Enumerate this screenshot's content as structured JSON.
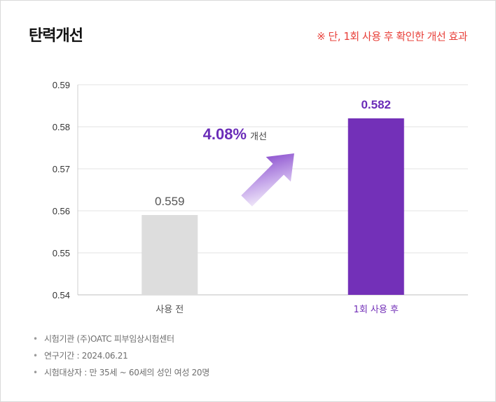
{
  "title": "탄력개선",
  "note": "※ 단, 1회 사용 후 확인한 개선 효과",
  "chart_data": {
    "type": "bar",
    "categories": [
      "사용 전",
      "1회 사용 후"
    ],
    "values": [
      0.559,
      0.582
    ],
    "data_labels": [
      "0.559",
      "0.582"
    ],
    "colors": [
      "#dddddd",
      "#7330b8"
    ],
    "category_label_colors": [
      "#555555",
      "#7330b8"
    ],
    "ylim": [
      0.54,
      0.59
    ],
    "yticks": [
      "0.54",
      "0.55",
      "0.56",
      "0.57",
      "0.58",
      "0.59"
    ],
    "grid": true,
    "annotation": {
      "value": "4.08%",
      "text": "개선",
      "color": "#6a2cb8"
    }
  },
  "footnotes": [
    "시험기관 (주)OATC 피부임상시험센터",
    "연구기간 : 2024.06.21",
    "시험대상자 : 만 35세 ~ 60세의 성인 여성 20명"
  ]
}
